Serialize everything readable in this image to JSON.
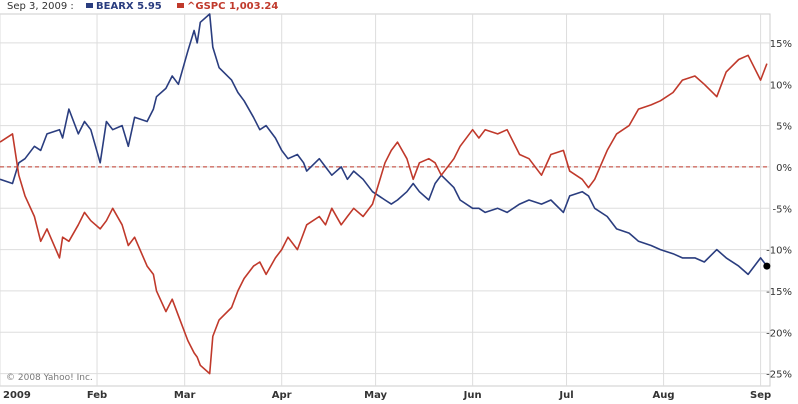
{
  "header": {
    "date": "Sep 3, 2009 :",
    "series": [
      {
        "symbol": "BEARX",
        "value": "5.95",
        "color": "#2a3d7f"
      },
      {
        "symbol": "^GSPC",
        "value": "1,003.24",
        "color": "#c0392b"
      }
    ]
  },
  "copyright": "© 2008 Yahoo! Inc.",
  "chart_data": {
    "type": "line",
    "title": "",
    "xlabel": "",
    "ylabel": "",
    "y_unit": "%",
    "x_ticks": [
      "2009",
      "Feb",
      "Mar",
      "Apr",
      "May",
      "Jun",
      "Jul",
      "Aug",
      "Sep"
    ],
    "x_tick_dates": [
      "2009-01-01",
      "2009-02-01",
      "2009-03-01",
      "2009-04-01",
      "2009-05-01",
      "2009-06-01",
      "2009-07-01",
      "2009-08-01",
      "2009-09-01"
    ],
    "x_range": [
      "2009-01-01",
      "2009-09-04"
    ],
    "y_ticks": [
      "15%",
      "10%",
      "5%",
      "0%",
      "-5%",
      "-10%",
      "-15%",
      "-20%",
      "-25%"
    ],
    "y_tick_values": [
      15,
      10,
      5,
      0,
      -5,
      -10,
      -15,
      -20,
      -25
    ],
    "ylim": [
      -26.5,
      18.5
    ],
    "grid": true,
    "baseline": 0,
    "legend_position": "top-left",
    "series": [
      {
        "name": "BEARX",
        "color": "#2a3d7f",
        "points": [
          [
            "2009-01-01",
            -1.5
          ],
          [
            "2009-01-05",
            -2
          ],
          [
            "2009-01-07",
            0.5
          ],
          [
            "2009-01-09",
            1
          ],
          [
            "2009-01-12",
            2.5
          ],
          [
            "2009-01-14",
            2
          ],
          [
            "2009-01-16",
            4
          ],
          [
            "2009-01-20",
            4.5
          ],
          [
            "2009-01-21",
            3.5
          ],
          [
            "2009-01-23",
            7
          ],
          [
            "2009-01-26",
            4
          ],
          [
            "2009-01-28",
            5.5
          ],
          [
            "2009-01-30",
            4.5
          ],
          [
            "2009-02-02",
            0.5
          ],
          [
            "2009-02-04",
            5.5
          ],
          [
            "2009-02-06",
            4.5
          ],
          [
            "2009-02-09",
            5
          ],
          [
            "2009-02-11",
            2.5
          ],
          [
            "2009-02-13",
            6
          ],
          [
            "2009-02-17",
            5.5
          ],
          [
            "2009-02-19",
            7
          ],
          [
            "2009-02-20",
            8.5
          ],
          [
            "2009-02-23",
            9.5
          ],
          [
            "2009-02-25",
            11
          ],
          [
            "2009-02-27",
            10
          ],
          [
            "2009-03-02",
            14
          ],
          [
            "2009-03-04",
            16.5
          ],
          [
            "2009-03-05",
            15
          ],
          [
            "2009-03-06",
            17.5
          ],
          [
            "2009-03-09",
            18.5
          ],
          [
            "2009-03-10",
            14.5
          ],
          [
            "2009-03-12",
            12
          ],
          [
            "2009-03-16",
            10.5
          ],
          [
            "2009-03-18",
            9
          ],
          [
            "2009-03-20",
            8
          ],
          [
            "2009-03-23",
            6
          ],
          [
            "2009-03-25",
            4.5
          ],
          [
            "2009-03-27",
            5
          ],
          [
            "2009-03-30",
            3.5
          ],
          [
            "2009-04-01",
            2
          ],
          [
            "2009-04-03",
            1
          ],
          [
            "2009-04-06",
            1.5
          ],
          [
            "2009-04-08",
            0.5
          ],
          [
            "2009-04-09",
            -0.5
          ],
          [
            "2009-04-13",
            1
          ],
          [
            "2009-04-15",
            0
          ],
          [
            "2009-04-17",
            -1
          ],
          [
            "2009-04-20",
            0
          ],
          [
            "2009-04-22",
            -1.5
          ],
          [
            "2009-04-24",
            -0.5
          ],
          [
            "2009-04-27",
            -1.5
          ],
          [
            "2009-04-30",
            -3
          ],
          [
            "2009-05-04",
            -4
          ],
          [
            "2009-05-06",
            -4.5
          ],
          [
            "2009-05-08",
            -4
          ],
          [
            "2009-05-11",
            -3
          ],
          [
            "2009-05-13",
            -2
          ],
          [
            "2009-05-15",
            -3
          ],
          [
            "2009-05-18",
            -4
          ],
          [
            "2009-05-20",
            -2
          ],
          [
            "2009-05-22",
            -1
          ],
          [
            "2009-05-26",
            -2.5
          ],
          [
            "2009-05-28",
            -4
          ],
          [
            "2009-06-01",
            -5
          ],
          [
            "2009-06-03",
            -5
          ],
          [
            "2009-06-05",
            -5.5
          ],
          [
            "2009-06-09",
            -5
          ],
          [
            "2009-06-12",
            -5.5
          ],
          [
            "2009-06-16",
            -4.5
          ],
          [
            "2009-06-19",
            -4
          ],
          [
            "2009-06-23",
            -4.5
          ],
          [
            "2009-06-26",
            -4
          ],
          [
            "2009-06-30",
            -5.5
          ],
          [
            "2009-07-02",
            -3.5
          ],
          [
            "2009-07-06",
            -3
          ],
          [
            "2009-07-08",
            -3.5
          ],
          [
            "2009-07-10",
            -5
          ],
          [
            "2009-07-14",
            -6
          ],
          [
            "2009-07-17",
            -7.5
          ],
          [
            "2009-07-21",
            -8
          ],
          [
            "2009-07-24",
            -9
          ],
          [
            "2009-07-28",
            -9.5
          ],
          [
            "2009-07-31",
            -10
          ],
          [
            "2009-08-04",
            -10.5
          ],
          [
            "2009-08-07",
            -11
          ],
          [
            "2009-08-11",
            -11
          ],
          [
            "2009-08-14",
            -11.5
          ],
          [
            "2009-08-18",
            -10
          ],
          [
            "2009-08-21",
            -11
          ],
          [
            "2009-08-25",
            -12
          ],
          [
            "2009-08-28",
            -13
          ],
          [
            "2009-09-01",
            -11
          ],
          [
            "2009-09-03",
            -12
          ]
        ]
      },
      {
        "name": "^GSPC",
        "color": "#c0392b",
        "points": [
          [
            "2009-01-01",
            3
          ],
          [
            "2009-01-05",
            4
          ],
          [
            "2009-01-07",
            -1
          ],
          [
            "2009-01-09",
            -3.5
          ],
          [
            "2009-01-12",
            -6
          ],
          [
            "2009-01-14",
            -9
          ],
          [
            "2009-01-16",
            -7.5
          ],
          [
            "2009-01-20",
            -11
          ],
          [
            "2009-01-21",
            -8.5
          ],
          [
            "2009-01-23",
            -9
          ],
          [
            "2009-01-26",
            -7
          ],
          [
            "2009-01-28",
            -5.5
          ],
          [
            "2009-01-30",
            -6.5
          ],
          [
            "2009-02-02",
            -7.5
          ],
          [
            "2009-02-04",
            -6.5
          ],
          [
            "2009-02-06",
            -5
          ],
          [
            "2009-02-09",
            -7
          ],
          [
            "2009-02-11",
            -9.5
          ],
          [
            "2009-02-13",
            -8.5
          ],
          [
            "2009-02-17",
            -12
          ],
          [
            "2009-02-19",
            -13
          ],
          [
            "2009-02-20",
            -15
          ],
          [
            "2009-02-23",
            -17.5
          ],
          [
            "2009-02-25",
            -16
          ],
          [
            "2009-02-27",
            -18
          ],
          [
            "2009-03-02",
            -21
          ],
          [
            "2009-03-04",
            -22.5
          ],
          [
            "2009-03-05",
            -23
          ],
          [
            "2009-03-06",
            -24
          ],
          [
            "2009-03-09",
            -25
          ],
          [
            "2009-03-10",
            -20.5
          ],
          [
            "2009-03-12",
            -18.5
          ],
          [
            "2009-03-16",
            -17
          ],
          [
            "2009-03-18",
            -15
          ],
          [
            "2009-03-20",
            -13.5
          ],
          [
            "2009-03-23",
            -12
          ],
          [
            "2009-03-25",
            -11.5
          ],
          [
            "2009-03-27",
            -13
          ],
          [
            "2009-03-30",
            -11
          ],
          [
            "2009-04-01",
            -10
          ],
          [
            "2009-04-03",
            -8.5
          ],
          [
            "2009-04-06",
            -10
          ],
          [
            "2009-04-08",
            -8
          ],
          [
            "2009-04-09",
            -7
          ],
          [
            "2009-04-13",
            -6
          ],
          [
            "2009-04-15",
            -7
          ],
          [
            "2009-04-17",
            -5
          ],
          [
            "2009-04-20",
            -7
          ],
          [
            "2009-04-22",
            -6
          ],
          [
            "2009-04-24",
            -5
          ],
          [
            "2009-04-27",
            -6
          ],
          [
            "2009-04-30",
            -4.5
          ],
          [
            "2009-05-04",
            0.5
          ],
          [
            "2009-05-06",
            2
          ],
          [
            "2009-05-08",
            3
          ],
          [
            "2009-05-11",
            1
          ],
          [
            "2009-05-13",
            -1.5
          ],
          [
            "2009-05-15",
            0.5
          ],
          [
            "2009-05-18",
            1
          ],
          [
            "2009-05-20",
            0.5
          ],
          [
            "2009-05-22",
            -1
          ],
          [
            "2009-05-26",
            1
          ],
          [
            "2009-05-28",
            2.5
          ],
          [
            "2009-06-01",
            4.5
          ],
          [
            "2009-06-03",
            3.5
          ],
          [
            "2009-06-05",
            4.5
          ],
          [
            "2009-06-09",
            4
          ],
          [
            "2009-06-12",
            4.5
          ],
          [
            "2009-06-16",
            1.5
          ],
          [
            "2009-06-19",
            1
          ],
          [
            "2009-06-23",
            -1
          ],
          [
            "2009-06-26",
            1.5
          ],
          [
            "2009-06-30",
            2
          ],
          [
            "2009-07-02",
            -0.5
          ],
          [
            "2009-07-06",
            -1.5
          ],
          [
            "2009-07-08",
            -2.5
          ],
          [
            "2009-07-10",
            -1.5
          ],
          [
            "2009-07-14",
            2
          ],
          [
            "2009-07-17",
            4
          ],
          [
            "2009-07-21",
            5
          ],
          [
            "2009-07-24",
            7
          ],
          [
            "2009-07-28",
            7.5
          ],
          [
            "2009-07-31",
            8
          ],
          [
            "2009-08-04",
            9
          ],
          [
            "2009-08-07",
            10.5
          ],
          [
            "2009-08-11",
            11
          ],
          [
            "2009-08-14",
            10
          ],
          [
            "2009-08-18",
            8.5
          ],
          [
            "2009-08-21",
            11.5
          ],
          [
            "2009-08-25",
            13
          ],
          [
            "2009-08-28",
            13.5
          ],
          [
            "2009-09-01",
            10.5
          ],
          [
            "2009-09-03",
            12.5
          ]
        ]
      }
    ]
  }
}
